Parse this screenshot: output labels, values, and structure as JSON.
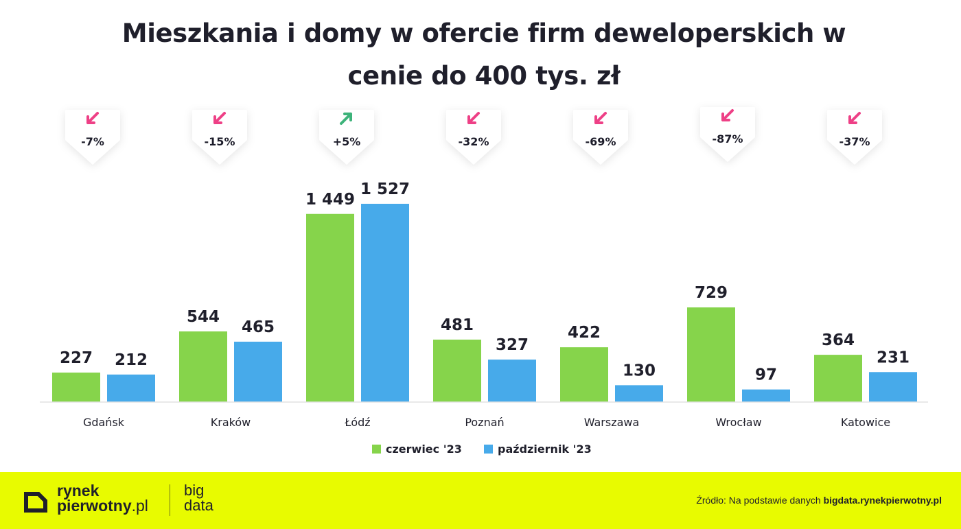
{
  "title": {
    "line1": "Mieszkania i domy w ofercie firm deweloperskich w",
    "line2": "cenie do 400 tys. zł"
  },
  "chart_data": {
    "type": "bar",
    "categories": [
      "Gdańsk",
      "Kraków",
      "Łódź",
      "Poznań",
      "Warszawa",
      "Wrocław",
      "Katowice"
    ],
    "series": [
      {
        "name": "czerwiec '23",
        "color": "#86d44b",
        "values": [
          227,
          544,
          1449,
          481,
          422,
          729,
          364
        ],
        "labels": [
          "227",
          "544",
          "1 449",
          "481",
          "422",
          "729",
          "364"
        ]
      },
      {
        "name": "październik '23",
        "color": "#47aaea",
        "values": [
          212,
          465,
          1527,
          327,
          130,
          97,
          231
        ],
        "labels": [
          "212",
          "465",
          "1 527",
          "327",
          "130",
          "97",
          "231"
        ]
      }
    ],
    "changes": [
      {
        "label": "-7%",
        "direction": "down"
      },
      {
        "label": "-15%",
        "direction": "down"
      },
      {
        "label": "+5%",
        "direction": "up"
      },
      {
        "label": "-32%",
        "direction": "down"
      },
      {
        "label": "-69%",
        "direction": "down"
      },
      {
        "label": "-87%",
        "direction": "down"
      },
      {
        "label": "-37%",
        "direction": "down"
      }
    ],
    "ylim": [
      0,
      1527
    ],
    "grid": false,
    "legend_position": "bottom-center",
    "colors": {
      "down": "#ee3f86",
      "up": "#3cb37a"
    }
  },
  "footer": {
    "logo_line1": "rynek",
    "logo_line2_bold": "pierwotny",
    "logo_line2_rest": ".pl",
    "bigdata_line1": "big",
    "bigdata_line2": "data",
    "source_prefix": "Źródło: Na podstawie danych ",
    "source_link": "bigdata.rynekpierwotny.pl",
    "background": "#e8fb00"
  }
}
